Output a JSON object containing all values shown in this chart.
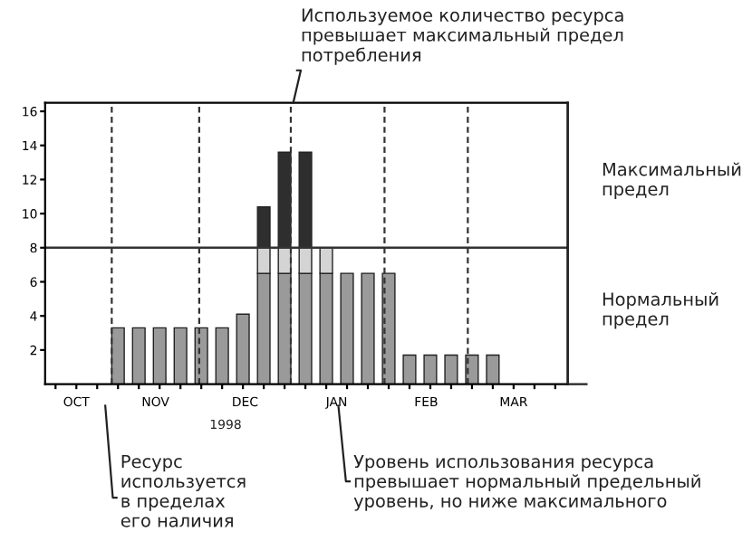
{
  "chart_data": {
    "type": "bar",
    "stacked": true,
    "categories": [
      null,
      null,
      null,
      null,
      null,
      null,
      null,
      null,
      null,
      null,
      null,
      null,
      null,
      null,
      null,
      null,
      null,
      null,
      null,
      null,
      null,
      null,
      null,
      null,
      null
    ],
    "series": [
      {
        "color": "#9a9a9a",
        "values": [
          null,
          null,
          null,
          3.3,
          3.3,
          3.3,
          3.3,
          3.3,
          3.3,
          4.1,
          6.5,
          6.5,
          6.5,
          6.5,
          6.5,
          6.5,
          6.5,
          1.7,
          1.7,
          1.7,
          1.7,
          1.7,
          null,
          null,
          null
        ]
      },
      {
        "color": "#d4d4d4",
        "values": [
          null,
          null,
          null,
          null,
          null,
          null,
          null,
          null,
          null,
          null,
          1.5,
          1.5,
          1.5,
          1.5,
          null,
          null,
          null,
          null,
          null,
          null,
          null,
          null,
          null,
          null,
          null
        ]
      },
      {
        "color": "#2e2e2e",
        "values": [
          null,
          null,
          null,
          null,
          null,
          null,
          null,
          null,
          null,
          null,
          2.4,
          5.6,
          5.6,
          null,
          null,
          null,
          null,
          null,
          null,
          null,
          null,
          null,
          null,
          null,
          null
        ]
      }
    ],
    "ylim": [
      0,
      16.5
    ],
    "yticks": [
      2,
      4,
      6,
      8,
      10,
      12,
      14,
      16
    ],
    "ref_lines": [
      {
        "axis": "y",
        "value": 8,
        "color": "#333333",
        "line_style": "solid"
      }
    ],
    "annotations": [
      "OCT",
      "NOV",
      "DEC",
      "JAN",
      "FEB",
      "MAR",
      "1998",
      "Используемое количество ресурса\nпревышает максимальный предел\nпотребления",
      "Максимальный\nпредел",
      "Нормальный\nпредел",
      "Ресурс\nиспользуется\nв пределах\nего наличия",
      "Уровень использования ресурса\nпревышает нормальный предельный\nуровень, но ниже максимального"
    ],
    "grid": false,
    "legend": false
  }
}
